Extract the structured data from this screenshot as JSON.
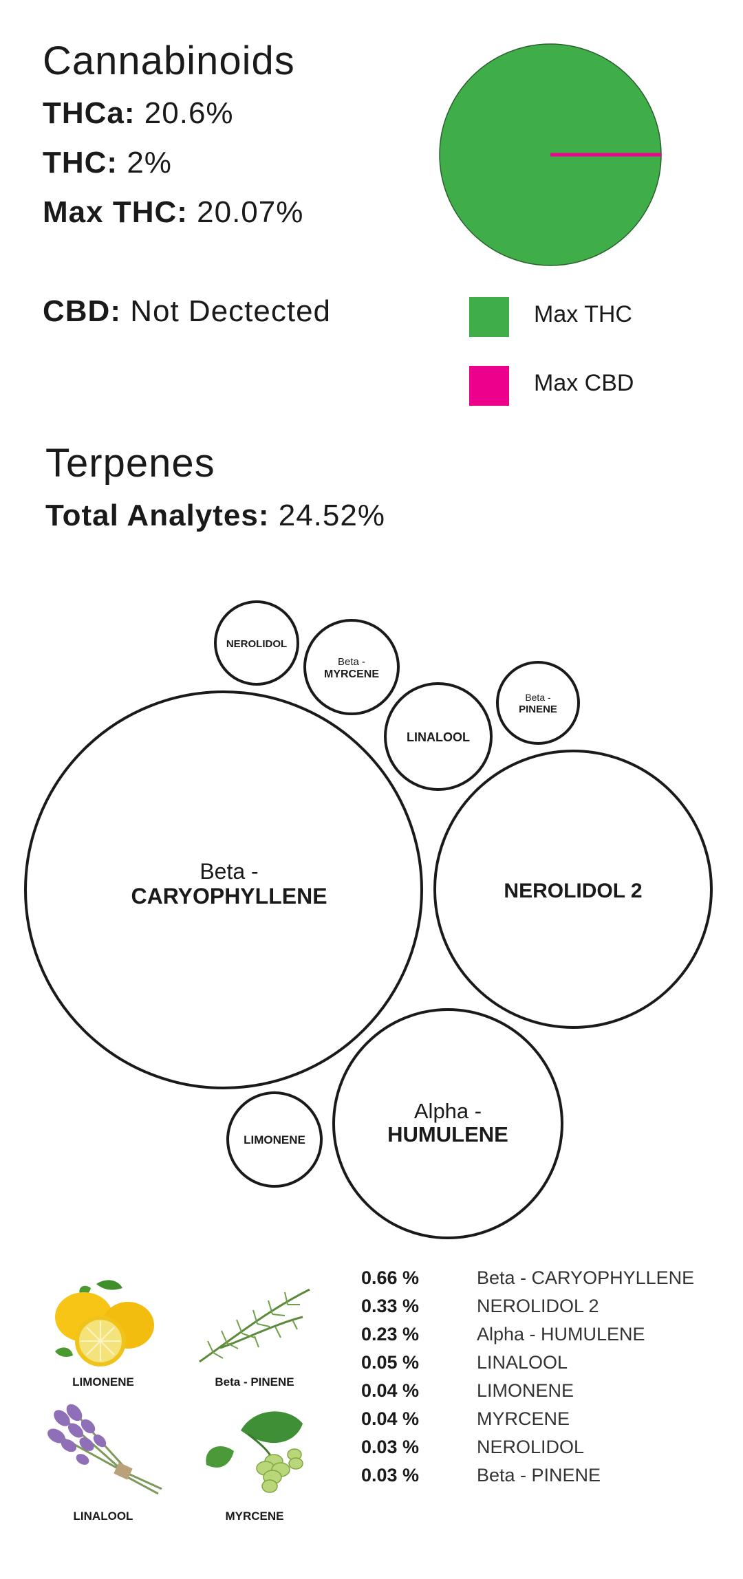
{
  "cannabinoids": {
    "title": "Cannabinoids",
    "thca_label": "THCa:",
    "thca_value": "20.6%",
    "thc_label": "THC:",
    "thc_value": "2%",
    "maxthc_label": "Max THC:",
    "maxthc_value": "20.07%",
    "cbd_label": "CBD:",
    "cbd_value": "Not Dectected"
  },
  "pie": {
    "slices": [
      {
        "name": "Max THC",
        "value": 100,
        "color": "#3fae49"
      },
      {
        "name": "Max CBD",
        "value": 0,
        "color": "#ec008c"
      }
    ]
  },
  "legend": [
    {
      "label": "Max THC",
      "color": "#3fae49"
    },
    {
      "label": "Max CBD",
      "color": "#ec008c"
    }
  ],
  "terpenes": {
    "title": "Terpenes",
    "total_label": "Total Analytes:",
    "total_value": "24.52%"
  },
  "bubbles": [
    {
      "line1": "",
      "line2": "NEROLIDOL"
    },
    {
      "line1": "Beta -",
      "line2": "MYRCENE"
    },
    {
      "line1": "Beta -",
      "line2": "PINENE"
    },
    {
      "line1": "",
      "line2": "LINALOOL"
    },
    {
      "line1": "Beta -",
      "line2": "CARYOPHYLLENE"
    },
    {
      "line1": "",
      "line2": "NEROLIDOL 2"
    },
    {
      "line1": "",
      "line2": "LIMONENE"
    },
    {
      "line1": "Alpha -",
      "line2": "HUMULENE"
    }
  ],
  "thumbnails": [
    {
      "caption": "LIMONENE",
      "icon": "lemon-icon"
    },
    {
      "caption": "Beta - PINENE",
      "icon": "pine-sprig-icon"
    },
    {
      "caption": "LINALOOL",
      "icon": "lavender-icon"
    },
    {
      "caption": "MYRCENE",
      "icon": "hops-icon"
    }
  ],
  "terpene_list": [
    {
      "pct": "0.66 %",
      "name": "Beta - CARYOPHYLLENE"
    },
    {
      "pct": "0.33 %",
      "name": "NEROLIDOL 2"
    },
    {
      "pct": "0.23 %",
      "name": "Alpha - HUMULENE"
    },
    {
      "pct": "0.05 %",
      "name": "LINALOOL"
    },
    {
      "pct": "0.04 %",
      "name": "LIMONENE"
    },
    {
      "pct": "0.04 %",
      "name": "MYRCENE"
    },
    {
      "pct": "0.03 %",
      "name": "NEROLIDOL"
    },
    {
      "pct": "0.03 %",
      "name": "Beta - PINENE"
    }
  ]
}
